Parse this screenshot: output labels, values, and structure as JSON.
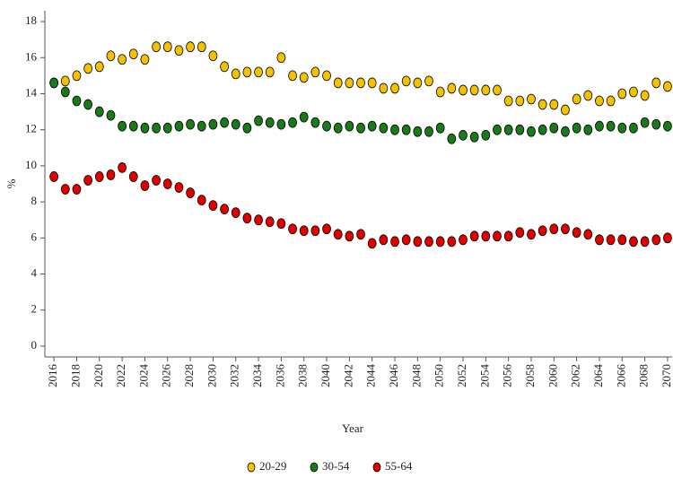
{
  "chart_data": {
    "type": "scatter",
    "x_label": "Year",
    "y_label": "%",
    "x": [
      2016,
      2017,
      2018,
      2019,
      2020,
      2021,
      2022,
      2023,
      2024,
      2025,
      2026,
      2027,
      2028,
      2029,
      2030,
      2031,
      2032,
      2033,
      2034,
      2035,
      2036,
      2037,
      2038,
      2039,
      2040,
      2041,
      2042,
      2043,
      2044,
      2045,
      2046,
      2047,
      2048,
      2049,
      2050,
      2051,
      2052,
      2053,
      2054,
      2055,
      2056,
      2057,
      2058,
      2059,
      2060,
      2061,
      2062,
      2063,
      2064,
      2065,
      2066,
      2067,
      2068,
      2069,
      2070
    ],
    "series": [
      {
        "name": "20-29",
        "color": "#f2c200",
        "values": [
          14.6,
          14.7,
          15.0,
          15.4,
          15.5,
          16.1,
          15.9,
          16.2,
          15.9,
          16.6,
          16.6,
          16.4,
          16.6,
          16.6,
          16.1,
          15.5,
          15.1,
          15.2,
          15.2,
          15.2,
          16.0,
          15.0,
          14.9,
          15.2,
          15.0,
          14.6,
          14.6,
          14.6,
          14.6,
          14.3,
          14.3,
          14.7,
          14.6,
          14.7,
          14.1,
          14.3,
          14.2,
          14.2,
          14.2,
          14.2,
          13.6,
          13.6,
          13.7,
          13.4,
          13.4,
          13.1,
          13.7,
          13.9,
          13.6,
          13.6,
          14.0,
          14.1,
          13.9,
          14.6,
          14.4
        ]
      },
      {
        "name": "30-54",
        "color": "#1a7a1a",
        "values": [
          14.6,
          14.1,
          13.6,
          13.4,
          13.0,
          12.8,
          12.2,
          12.2,
          12.1,
          12.1,
          12.1,
          12.2,
          12.3,
          12.2,
          12.3,
          12.4,
          12.3,
          12.1,
          12.5,
          12.4,
          12.3,
          12.4,
          12.7,
          12.4,
          12.2,
          12.1,
          12.2,
          12.1,
          12.2,
          12.1,
          12.0,
          12.0,
          11.9,
          11.9,
          12.1,
          11.5,
          11.7,
          11.6,
          11.7,
          12.0,
          12.0,
          12.0,
          11.9,
          12.0,
          12.1,
          11.9,
          12.1,
          12.0,
          12.2,
          12.2,
          12.1,
          12.1,
          12.4,
          12.3,
          12.2
        ]
      },
      {
        "name": "55-64",
        "color": "#e00000",
        "values": [
          9.4,
          8.7,
          8.7,
          9.2,
          9.4,
          9.5,
          9.9,
          9.4,
          8.9,
          9.2,
          9.0,
          8.8,
          8.5,
          8.1,
          7.8,
          7.6,
          7.4,
          7.1,
          7.0,
          6.9,
          6.8,
          6.5,
          6.4,
          6.4,
          6.5,
          6.2,
          6.1,
          6.2,
          5.7,
          5.9,
          5.8,
          5.9,
          5.8,
          5.8,
          5.8,
          5.8,
          5.9,
          6.1,
          6.1,
          6.1,
          6.1,
          6.3,
          6.2,
          6.4,
          6.5,
          6.5,
          6.3,
          6.2,
          5.9,
          5.9,
          5.9,
          5.8,
          5.8,
          5.9,
          6.0
        ]
      }
    ],
    "xlim": [
      2015.2,
      2070.4
    ],
    "xticks": [
      2016,
      2018,
      2020,
      2022,
      2024,
      2026,
      2028,
      2030,
      2032,
      2034,
      2036,
      2038,
      2040,
      2042,
      2044,
      2046,
      2048,
      2050,
      2052,
      2054,
      2056,
      2058,
      2060,
      2062,
      2064,
      2066,
      2068,
      2070
    ],
    "ylim": [
      -0.6,
      18.6
    ],
    "yticks": [
      0,
      2,
      4,
      6,
      8,
      10,
      12,
      14,
      16,
      18
    ],
    "legend": "bottom"
  }
}
